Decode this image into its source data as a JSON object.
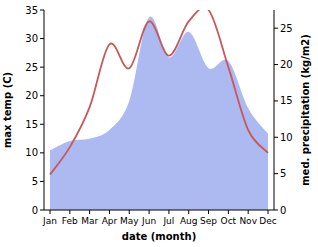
{
  "chart_data": {
    "type": "line",
    "x_label": "date (month)",
    "y_label": "max temp (C)",
    "y2_label": "med. precipitation (kg/m2)",
    "categories": [
      "Jan",
      "Feb",
      "Mar",
      "Apr",
      "May",
      "Jun",
      "Jul",
      "Aug",
      "Sep",
      "Oct",
      "Nov",
      "Dec"
    ],
    "series": [
      {
        "name": "max temp",
        "type": "line",
        "color": "#c8585a",
        "axis": "y",
        "values": [
          6.2,
          11,
          18,
          29,
          24.8,
          33,
          27,
          33,
          35,
          25,
          14,
          10
        ]
      },
      {
        "name": "med. precipitation",
        "type": "area",
        "color": "#adb9f1",
        "axis": "y2",
        "values": [
          8.2,
          9.5,
          9.8,
          11,
          15,
          26.5,
          21,
          24.5,
          19.5,
          20.5,
          14,
          10.5
        ]
      }
    ],
    "ylim": [
      0,
      35
    ],
    "yticks": [
      0,
      5,
      10,
      15,
      20,
      25,
      30,
      35
    ],
    "y2lim": [
      0,
      27.5
    ],
    "y2ticks": [
      0,
      5,
      10,
      15,
      20,
      25
    ],
    "grid": false
  }
}
